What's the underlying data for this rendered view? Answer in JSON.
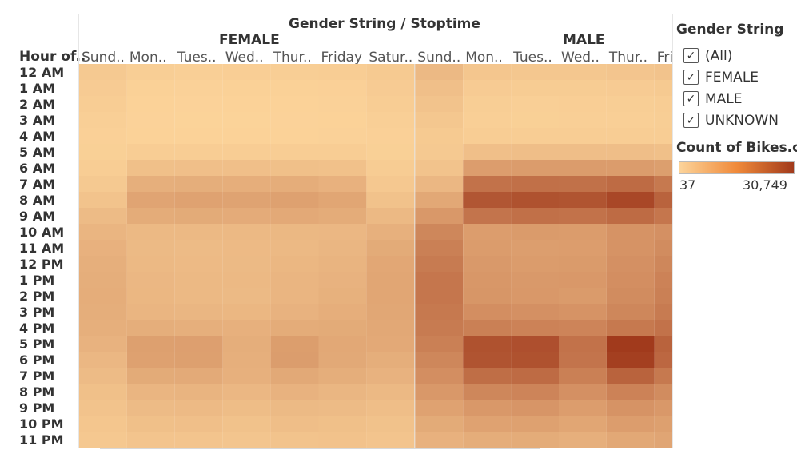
{
  "header": {
    "title": "Gender String / Stoptime",
    "row_header": "Hour of.."
  },
  "filter": {
    "title": "Gender String",
    "items": [
      {
        "label": "(All)",
        "checked": true
      },
      {
        "label": "FEMALE",
        "checked": true
      },
      {
        "label": "MALE",
        "checked": true
      },
      {
        "label": "UNKNOWN",
        "checked": true
      }
    ]
  },
  "legend": {
    "title": "Count of Bikes.c..",
    "min_label": "37",
    "max_label": "30,749",
    "min_color": "#fcd49a",
    "max_color": "#a13a1c"
  },
  "chart_data": {
    "type": "heatmap",
    "title": "Gender String / Stoptime",
    "ylabel": "Hour of..",
    "scale": {
      "min": 37,
      "max": 30749
    },
    "groups": [
      {
        "name": "FEMALE",
        "columns": [
          "Sund..",
          "Mon..",
          "Tues..",
          "Wed..",
          "Thur..",
          "Friday",
          "Satur.."
        ]
      },
      {
        "name": "MALE",
        "columns": [
          "Sund..",
          "Mon..",
          "Tues..",
          "Wed..",
          "Thur..",
          "Fri"
        ]
      }
    ],
    "rows": [
      "12 AM",
      "1 AM",
      "2 AM",
      "3 AM",
      "4 AM",
      "5 AM",
      "6 AM",
      "7 AM",
      "8 AM",
      "9 AM",
      "10 AM",
      "11 AM",
      "12 PM",
      "1 PM",
      "2 PM",
      "3 PM",
      "4 PM",
      "5 PM",
      "6 PM",
      "7 PM",
      "8 PM",
      "9 PM",
      "10 PM",
      "11 PM"
    ],
    "values": {
      "FEMALE": [
        [
          1200,
          600,
          500,
          550,
          600,
          650,
          1100
        ],
        [
          900,
          300,
          250,
          280,
          300,
          350,
          900
        ],
        [
          700,
          200,
          150,
          180,
          200,
          250,
          700
        ],
        [
          500,
          150,
          120,
          130,
          150,
          180,
          500
        ],
        [
          350,
          200,
          180,
          190,
          200,
          220,
          350
        ],
        [
          400,
          700,
          700,
          700,
          700,
          650,
          400
        ],
        [
          700,
          2500,
          2600,
          2600,
          2500,
          2300,
          800
        ],
        [
          1200,
          5200,
          5400,
          5300,
          5500,
          4800,
          1300
        ],
        [
          2000,
          7200,
          7500,
          7300,
          7800,
          6800,
          2200
        ],
        [
          3200,
          5800,
          6000,
          5900,
          6200,
          5700,
          3500
        ],
        [
          4200,
          3500,
          3600,
          3500,
          3700,
          3800,
          5000
        ],
        [
          4800,
          3400,
          3200,
          3300,
          3600,
          4000,
          6000
        ],
        [
          5200,
          3600,
          3300,
          3400,
          3900,
          4300,
          6600
        ],
        [
          5400,
          3800,
          3500,
          3600,
          4100,
          4600,
          6900
        ],
        [
          5500,
          3900,
          3600,
          3400,
          4200,
          4900,
          6800
        ],
        [
          5400,
          4200,
          4000,
          3900,
          4600,
          5300,
          6700
        ],
        [
          5200,
          5400,
          5200,
          5000,
          5800,
          6000,
          6500
        ],
        [
          4600,
          8000,
          8100,
          5400,
          8400,
          6400,
          6200
        ],
        [
          3800,
          7800,
          8000,
          5200,
          8600,
          6300,
          5400
        ],
        [
          3200,
          6000,
          6100,
          5000,
          6300,
          5400,
          4600
        ],
        [
          2500,
          4200,
          4400,
          3800,
          4600,
          4000,
          3600
        ],
        [
          2000,
          3200,
          3300,
          2900,
          3400,
          3200,
          2800
        ],
        [
          1600,
          2500,
          2600,
          2200,
          2700,
          2500,
          2200
        ],
        [
          1300,
          1800,
          1800,
          1700,
          2000,
          2100,
          1800
        ]
      ],
      "MALE": [
        [
          3500,
          1600,
          1500,
          1500,
          1700,
          2000
        ],
        [
          2600,
          900,
          800,
          850,
          900,
          1100
        ],
        [
          2000,
          600,
          500,
          550,
          600,
          700
        ],
        [
          1500,
          500,
          400,
          450,
          500,
          600
        ],
        [
          1100,
          700,
          650,
          700,
          700,
          700
        ],
        [
          1200,
          2600,
          2700,
          2700,
          2700,
          2500
        ],
        [
          2000,
          8500,
          8800,
          8800,
          8800,
          8200
        ],
        [
          3800,
          17500,
          18000,
          17800,
          19000,
          16000
        ],
        [
          6500,
          24000,
          25000,
          24500,
          27500,
          21000
        ],
        [
          9500,
          17000,
          18000,
          17500,
          19000,
          16500
        ],
        [
          13000,
          8500,
          9000,
          8800,
          10500,
          11000
        ],
        [
          14500,
          8800,
          8300,
          8500,
          10500,
          12000
        ],
        [
          15500,
          9300,
          8800,
          9000,
          11000,
          13000
        ],
        [
          16500,
          9600,
          9200,
          9400,
          11500,
          14000
        ],
        [
          16500,
          9900,
          9400,
          9000,
          12000,
          14500
        ],
        [
          16000,
          11500,
          11000,
          10500,
          13000,
          15500
        ],
        [
          15500,
          14500,
          14000,
          13500,
          16000,
          17500
        ],
        [
          14500,
          25000,
          25500,
          17500,
          30749,
          21000
        ],
        [
          13000,
          24500,
          25000,
          17000,
          29500,
          20000
        ],
        [
          11500,
          18500,
          19000,
          14500,
          21000,
          16000
        ],
        [
          9500,
          13000,
          13500,
          11000,
          14000,
          12000
        ],
        [
          7500,
          9500,
          10000,
          8500,
          10500,
          9500
        ],
        [
          6000,
          7500,
          7800,
          6800,
          8500,
          8000
        ],
        [
          4800,
          5500,
          5800,
          5200,
          6500,
          7000
        ]
      ]
    }
  }
}
